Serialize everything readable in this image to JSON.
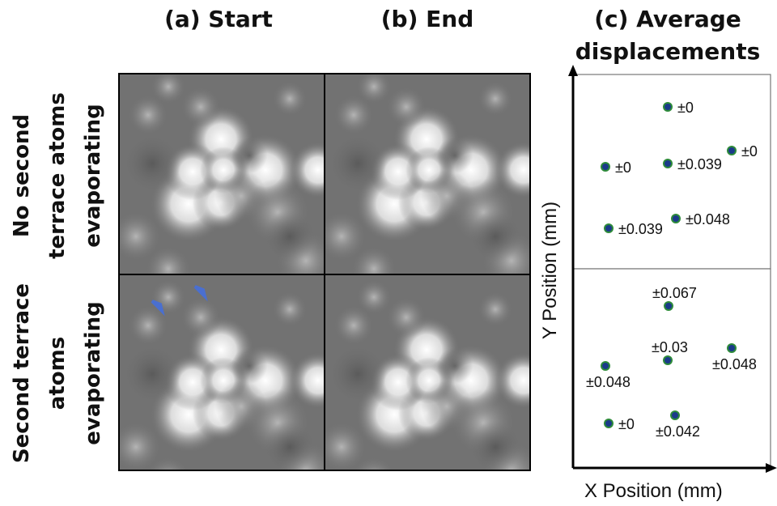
{
  "columns": {
    "a": "(a) Start",
    "b": "(b) End",
    "c_line1": "(c) Average",
    "c_line2": "displacements"
  },
  "rows": {
    "top": [
      "No second",
      "terrace atoms",
      "evaporating"
    ],
    "bottom": [
      "Second terrace",
      "atoms",
      "evaporating"
    ]
  },
  "plot": {
    "x_label": "X Position (mm)",
    "y_label": "Y Position (mm)",
    "colors": {
      "point_fill": "#1a3a8a",
      "point_ring": "#2e8b3a"
    },
    "top_points": [
      {
        "label": "±0"
      },
      {
        "label": "±0"
      },
      {
        "label": "±0.039"
      },
      {
        "label": "±0"
      },
      {
        "label": "±0.048"
      },
      {
        "label": "±0.039"
      }
    ],
    "bottom_points": [
      {
        "label": "±0.067"
      },
      {
        "label": "±0.03"
      },
      {
        "label": "±0.048"
      },
      {
        "label": "±0.048"
      },
      {
        "label": "±0"
      },
      {
        "label": "±0.042"
      }
    ]
  },
  "arrows": {
    "color": "#4a6fd0"
  }
}
